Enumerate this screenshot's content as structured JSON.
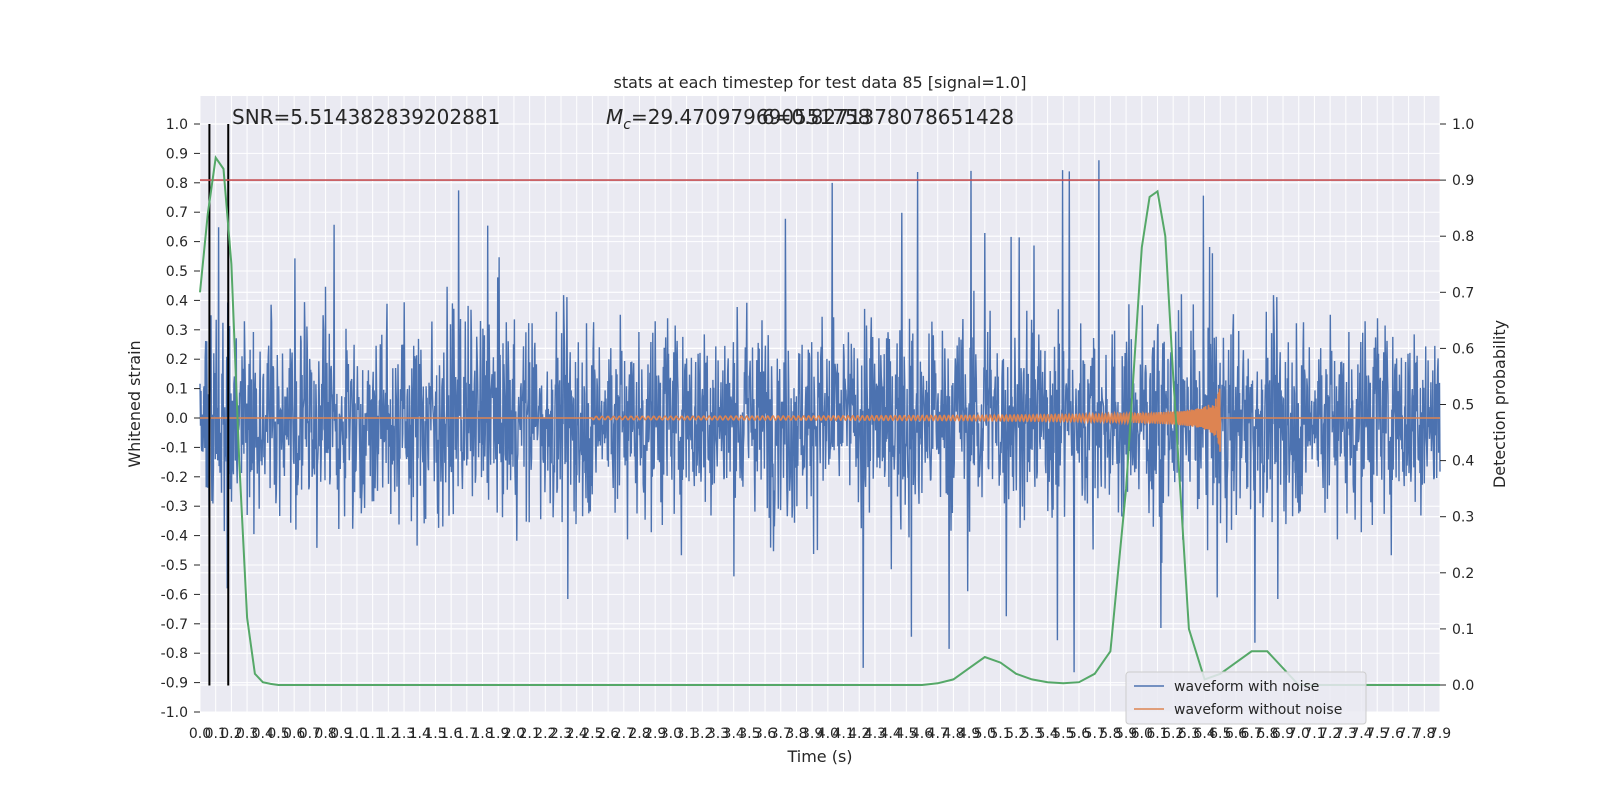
{
  "chart_data": {
    "type": "line",
    "title": "stats at each timestep for test data 85 [signal=1.0]",
    "xlabel": "Time (s)",
    "ylabel_left": "Whitened strain",
    "ylabel_right": "Detection probability",
    "xlim": [
      0,
      7.9
    ],
    "ylim_left": [
      -1.0,
      1.0
    ],
    "ylim_right": [
      -0.05,
      1.0
    ],
    "grid": true,
    "x_ticks": [
      "0.0",
      "0.1",
      "0.2",
      "0.3",
      "0.4",
      "0.5",
      "0.6",
      "0.7",
      "0.8",
      "0.9",
      "1.0",
      "1.1",
      "1.2",
      "1.3",
      "1.4",
      "1.5",
      "1.6",
      "1.7",
      "1.8",
      "1.9",
      "2.0",
      "2.1",
      "2.2",
      "2.3",
      "2.4",
      "2.5",
      "2.6",
      "2.7",
      "2.8",
      "2.9",
      "3.0",
      "3.1",
      "3.2",
      "3.3",
      "3.4",
      "3.5",
      "3.6",
      "3.7",
      "3.8",
      "3.9",
      "4.0",
      "4.1",
      "4.2",
      "4.3",
      "4.4",
      "4.5",
      "4.6",
      "4.7",
      "4.8",
      "4.9",
      "5.0",
      "5.1",
      "5.2",
      "5.3",
      "5.4",
      "5.5",
      "5.6",
      "5.7",
      "5.8",
      "5.9",
      "6.0",
      "6.1",
      "6.2",
      "6.3",
      "6.4",
      "6.5",
      "6.6",
      "6.7",
      "6.8",
      "6.9",
      "7.0",
      "7.1",
      "7.2",
      "7.3",
      "7.4",
      "7.5",
      "7.6",
      "7.7",
      "7.8",
      "7.9"
    ],
    "y_ticks_left": [
      "1.0",
      "0.9",
      "0.8",
      "0.7",
      "0.6",
      "0.5",
      "0.4",
      "0.3",
      "0.2",
      "0.1",
      "0.0",
      "-0.1",
      "-0.2",
      "-0.3",
      "-0.4",
      "-0.5",
      "-0.6",
      "-0.7",
      "-0.8",
      "-0.9",
      "-1.0"
    ],
    "y_ticks_right": [
      "1.0",
      "0.9",
      "0.8",
      "0.7",
      "0.6",
      "0.5",
      "0.4",
      "0.3",
      "0.2",
      "0.1",
      "0.0"
    ],
    "annotations": {
      "snr": "SNR=5.514382839202881",
      "mc_prefix": "M",
      "mc_sub": "c",
      "mc_value": "=29.470979690551758",
      "overlap": "6=0.8271378078651428"
    },
    "legend_placement": "lower-right",
    "series": [
      {
        "name": "waveform with noise",
        "color": "#4c72b0",
        "axis": "left",
        "kind": "noise",
        "std": 0.17,
        "spike_max": 1.0
      },
      {
        "name": "waveform without noise",
        "color": "#dd8452",
        "axis": "left",
        "kind": "chirp",
        "end_time": 6.5,
        "peak_amplitude": 0.3
      },
      {
        "name": "",
        "color": "#55a868",
        "axis": "right",
        "x": [
          0.0,
          0.05,
          0.1,
          0.15,
          0.2,
          0.25,
          0.3,
          0.35,
          0.4,
          0.45,
          0.5,
          0.6,
          0.8,
          1.0,
          2.0,
          3.0,
          4.0,
          4.5,
          4.6,
          4.7,
          4.8,
          4.9,
          5.0,
          5.1,
          5.2,
          5.3,
          5.4,
          5.5,
          5.6,
          5.7,
          5.8,
          5.9,
          6.0,
          6.05,
          6.1,
          6.15,
          6.2,
          6.3,
          6.4,
          6.5,
          6.6,
          6.7,
          6.8,
          7.0,
          7.9
        ],
        "y": [
          0.7,
          0.84,
          0.94,
          0.92,
          0.75,
          0.4,
          0.12,
          0.02,
          0.005,
          0.002,
          0.0,
          0.0,
          0.0,
          0.0,
          0.0,
          0.0,
          0.0,
          0.0,
          0.0,
          0.003,
          0.01,
          0.03,
          0.05,
          0.04,
          0.02,
          0.01,
          0.005,
          0.003,
          0.005,
          0.02,
          0.06,
          0.35,
          0.78,
          0.87,
          0.88,
          0.8,
          0.55,
          0.1,
          0.01,
          0.02,
          0.04,
          0.06,
          0.06,
          0.0,
          0.0
        ]
      },
      {
        "name": "",
        "color": "#c44e52",
        "axis": "right",
        "kind": "hline",
        "y": 0.9
      },
      {
        "name": "",
        "color": "#000000",
        "axis": "left",
        "kind": "vline",
        "x": 0.06,
        "ylim": [
          -0.91,
          1.0
        ]
      },
      {
        "name": "",
        "color": "#000000",
        "axis": "left",
        "kind": "vline",
        "x": 0.18,
        "ylim": [
          -0.91,
          1.0
        ]
      }
    ]
  }
}
